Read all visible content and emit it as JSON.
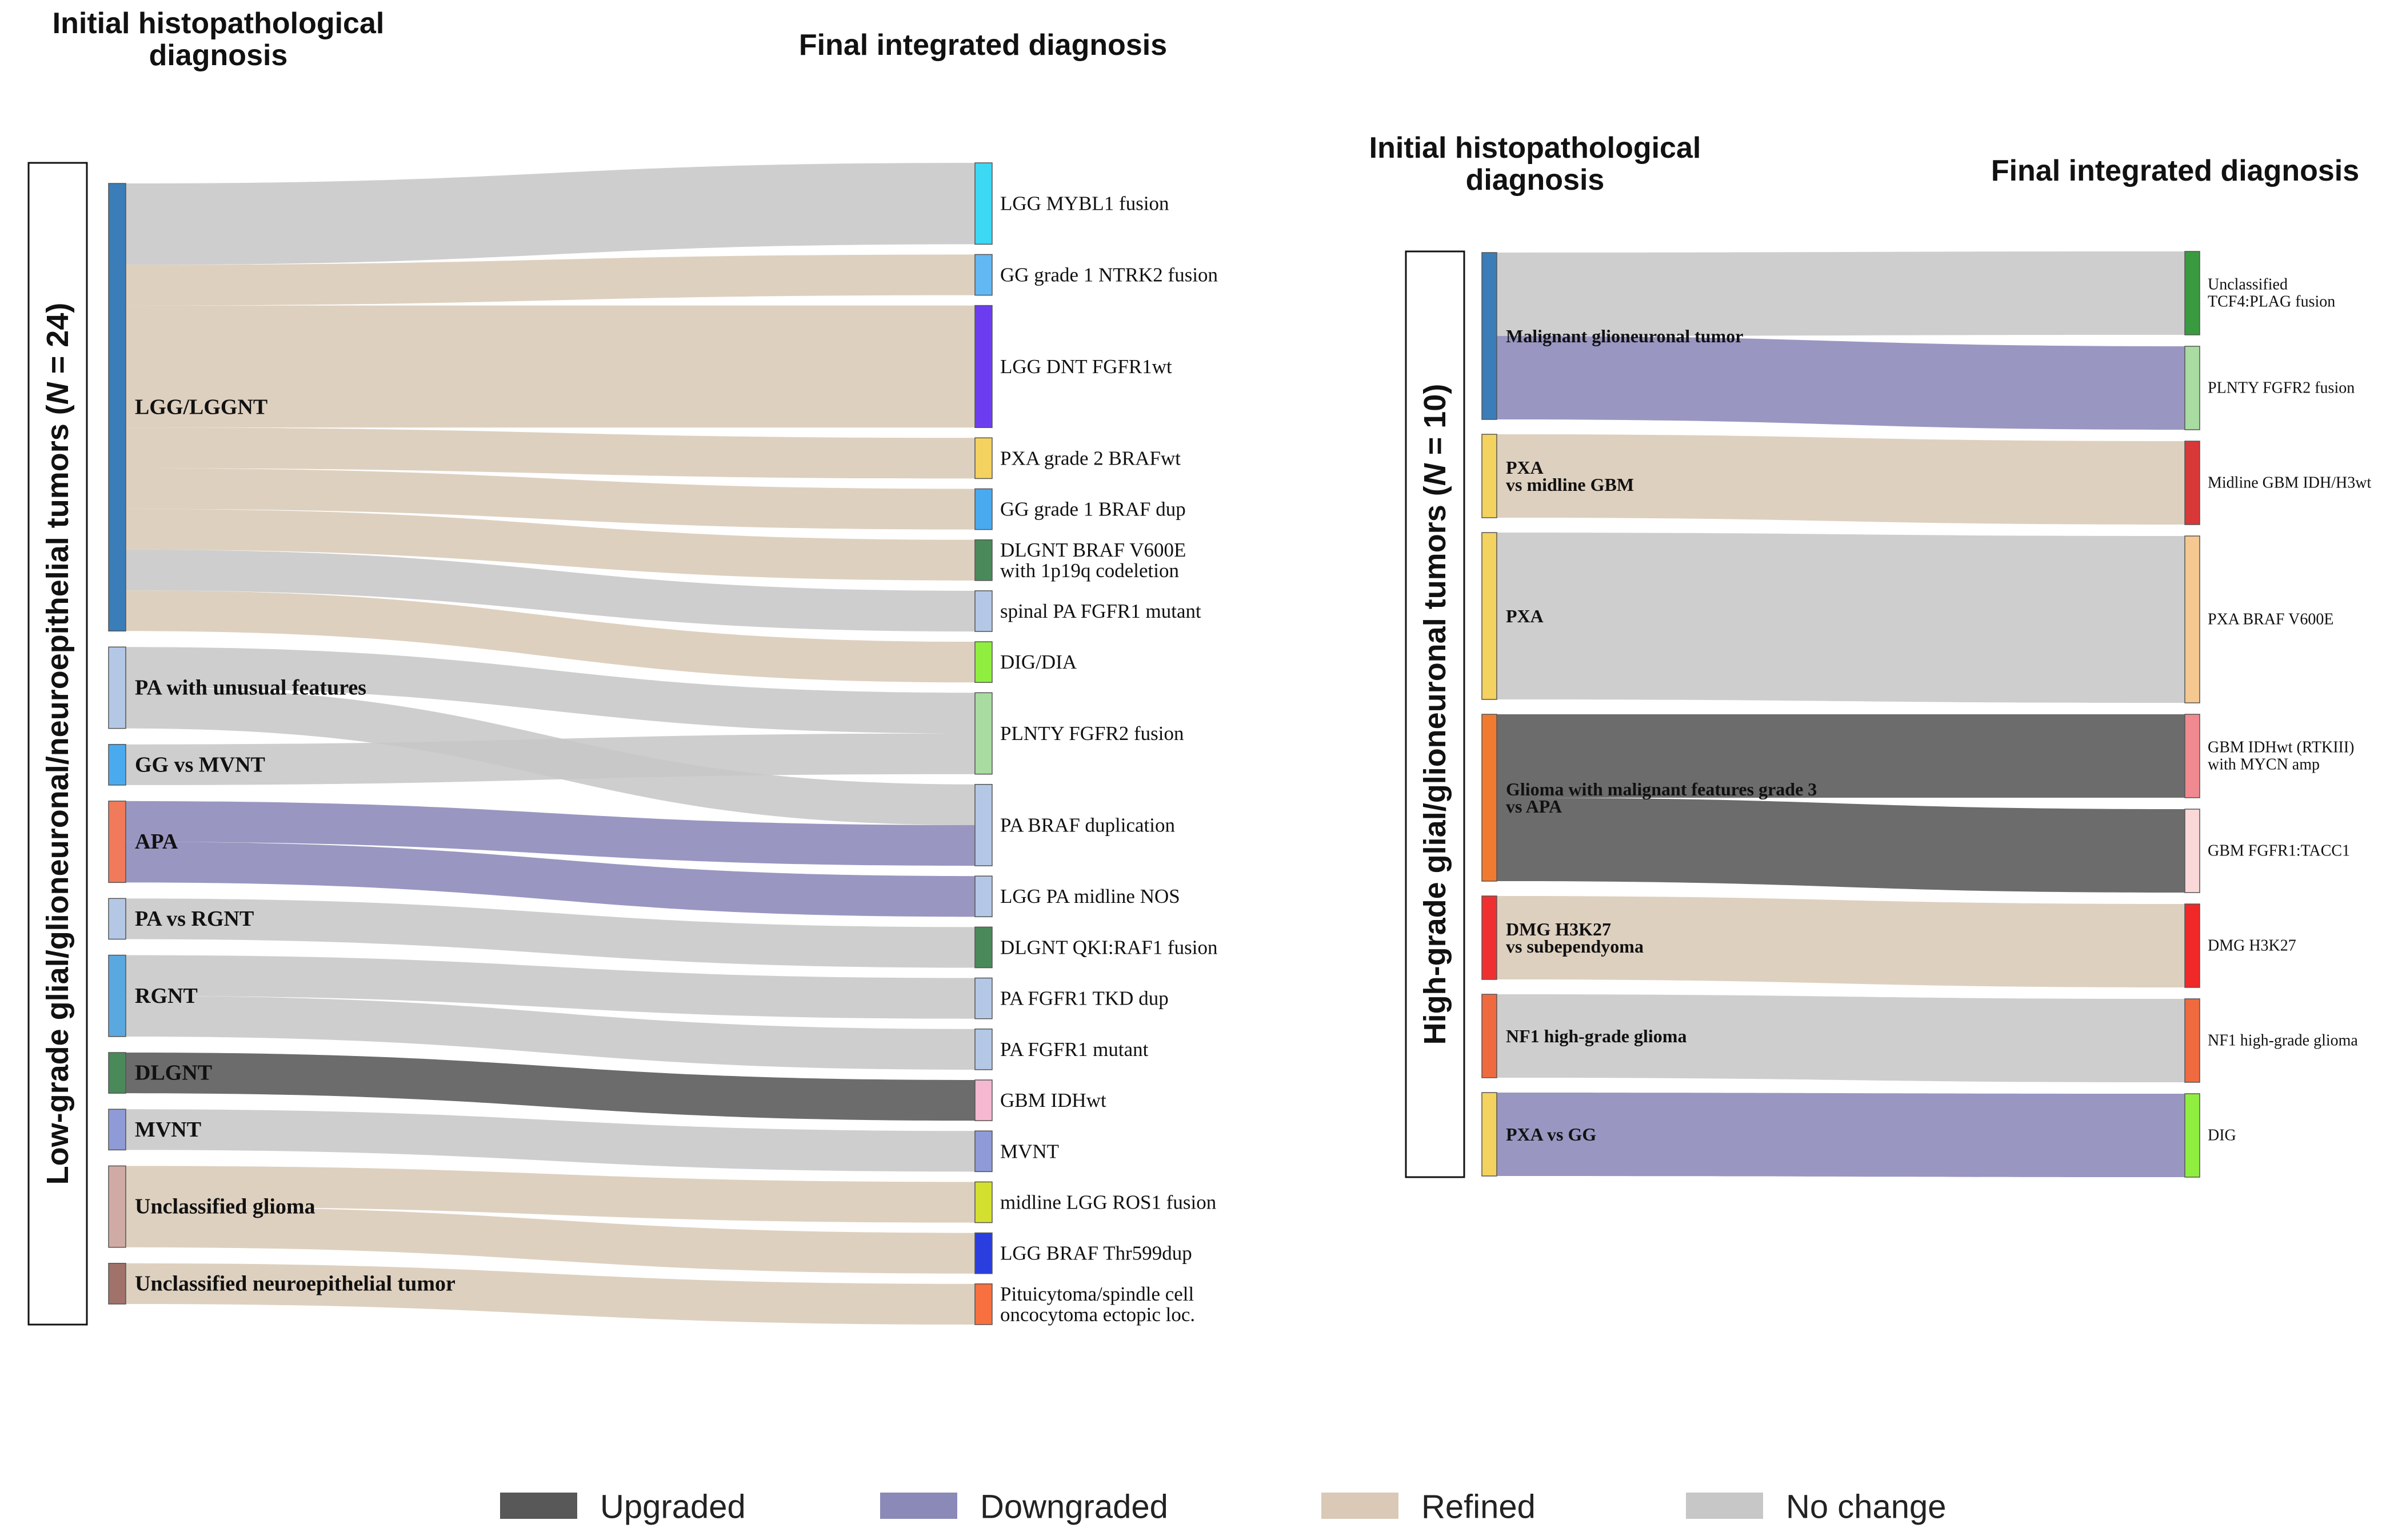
{
  "colors": {
    "Upgraded": "#585858",
    "Downgraded": "#8b89b8",
    "Refined": "#d9c9b6",
    "No change": "#c7c7c7"
  },
  "legend": [
    {
      "key": "Upgraded",
      "label": "Upgraded"
    },
    {
      "key": "Downgraded",
      "label": "Downgraded"
    },
    {
      "key": "Refined",
      "label": "Refined"
    },
    {
      "key": "No change",
      "label": "No change"
    }
  ],
  "panels": [
    {
      "id": "low",
      "header_left": [
        "Initial histopathological",
        "diagnosis"
      ],
      "header_right": "Final integrated diagnosis",
      "group_label": "Low-grade glial/glioneuronal/neuroepithelial tumors (",
      "group_n": "N",
      "group_count": " = 24)",
      "sources": [
        {
          "label": [
            "LGG/LGGNT"
          ],
          "color": "#3a7db8",
          "value": 11
        },
        {
          "label": [
            "PA with unusual features"
          ],
          "color": "#b4c8e6",
          "value": 2
        },
        {
          "label": [
            "GG vs MVNT"
          ],
          "color": "#4aaaf0",
          "value": 1
        },
        {
          "label": [
            "APA"
          ],
          "color": "#f07a5a",
          "value": 2
        },
        {
          "label": [
            "PA vs RGNT"
          ],
          "color": "#b4c8e6",
          "value": 1
        },
        {
          "label": [
            "RGNT"
          ],
          "color": "#5aa8e0",
          "value": 2
        },
        {
          "label": [
            "DLGNT"
          ],
          "color": "#4a8a5a",
          "value": 1
        },
        {
          "label": [
            "MVNT"
          ],
          "color": "#8f9bd6",
          "value": 1
        },
        {
          "label": [
            "Unclassified glioma"
          ],
          "color": "#d0aaa4",
          "value": 2
        },
        {
          "label": [
            "Unclassified neuroepithelial tumor"
          ],
          "color": "#a0726a",
          "value": 1
        }
      ],
      "targets": [
        {
          "label": [
            "LGG MYBL1 fusion"
          ],
          "color": "#3cd8f4",
          "value": 2
        },
        {
          "label": [
            "GG grade 1 NTRK2 fusion"
          ],
          "color": "#62b8f2",
          "value": 1
        },
        {
          "label": [
            "LGG DNT FGFR1wt"
          ],
          "color": "#6c3df0",
          "value": 3
        },
        {
          "label": [
            "PXA grade 2 BRAFwt"
          ],
          "color": "#f4d260",
          "value": 1
        },
        {
          "label": [
            "GG grade 1 BRAF dup"
          ],
          "color": "#4aaaf0",
          "value": 1
        },
        {
          "label": [
            "DLGNT BRAF V600E",
            "with 1p19q codeletion"
          ],
          "color": "#4a8a5a",
          "value": 1
        },
        {
          "label": [
            "spinal PA FGFR1 mutant"
          ],
          "color": "#b4c8e6",
          "value": 1
        },
        {
          "label": [
            "DIG/DIA"
          ],
          "color": "#90ee40",
          "value": 1
        },
        {
          "label": [
            "PLNTY FGFR2 fusion"
          ],
          "color": "#a8dca0",
          "value": 2
        },
        {
          "label": [
            "PA BRAF duplication"
          ],
          "color": "#b4c8e6",
          "value": 2
        },
        {
          "label": [
            "LGG PA midline NOS"
          ],
          "color": "#b4c8e6",
          "value": 1
        },
        {
          "label": [
            "DLGNT QKI:RAF1 fusion"
          ],
          "color": "#4a8a5a",
          "value": 1
        },
        {
          "label": [
            "PA FGFR1 TKD dup"
          ],
          "color": "#b4c8e6",
          "value": 1
        },
        {
          "label": [
            "PA FGFR1 mutant"
          ],
          "color": "#b4c8e6",
          "value": 1
        },
        {
          "label": [
            "GBM IDHwt"
          ],
          "color": "#f4b8d0",
          "value": 1
        },
        {
          "label": [
            "MVNT"
          ],
          "color": "#8f9bd6",
          "value": 1
        },
        {
          "label": [
            "midline LGG ROS1 fusion"
          ],
          "color": "#d4e030",
          "value": 1
        },
        {
          "label": [
            "LGG BRAF Thr599dup"
          ],
          "color": "#2a3ee0",
          "value": 1
        },
        {
          "label": [
            "Pituicytoma/spindle cell",
            "oncocytoma ectopic loc."
          ],
          "color": "#f87040",
          "value": 1
        }
      ],
      "links": [
        {
          "source": 0,
          "target": 0,
          "value": 2,
          "type": "No change"
        },
        {
          "source": 0,
          "target": 1,
          "value": 1,
          "type": "Refined"
        },
        {
          "source": 0,
          "target": 2,
          "value": 3,
          "type": "Refined"
        },
        {
          "source": 0,
          "target": 3,
          "value": 1,
          "type": "Refined"
        },
        {
          "source": 0,
          "target": 4,
          "value": 1,
          "type": "Refined"
        },
        {
          "source": 0,
          "target": 5,
          "value": 1,
          "type": "Refined"
        },
        {
          "source": 0,
          "target": 6,
          "value": 1,
          "type": "No change"
        },
        {
          "source": 0,
          "target": 7,
          "value": 1,
          "type": "Refined"
        },
        {
          "source": 1,
          "target": 8,
          "value": 1,
          "type": "No change"
        },
        {
          "source": 1,
          "target": 9,
          "value": 1,
          "type": "No change"
        },
        {
          "source": 2,
          "target": 8,
          "value": 1,
          "type": "No change"
        },
        {
          "source": 3,
          "target": 9,
          "value": 1,
          "type": "Downgraded"
        },
        {
          "source": 3,
          "target": 10,
          "value": 1,
          "type": "Downgraded"
        },
        {
          "source": 4,
          "target": 11,
          "value": 1,
          "type": "No change"
        },
        {
          "source": 5,
          "target": 12,
          "value": 1,
          "type": "No change"
        },
        {
          "source": 5,
          "target": 13,
          "value": 1,
          "type": "No change"
        },
        {
          "source": 6,
          "target": 14,
          "value": 1,
          "type": "Upgraded"
        },
        {
          "source": 7,
          "target": 15,
          "value": 1,
          "type": "No change"
        },
        {
          "source": 8,
          "target": 16,
          "value": 1,
          "type": "Refined"
        },
        {
          "source": 8,
          "target": 17,
          "value": 1,
          "type": "Refined"
        },
        {
          "source": 9,
          "target": 18,
          "value": 1,
          "type": "Refined"
        }
      ]
    },
    {
      "id": "high",
      "header_left": [
        "Initial histopathological",
        "diagnosis"
      ],
      "header_right": "Final integrated diagnosis",
      "group_label": "High-grade glial/glioneuronal tumors (",
      "group_n": "N",
      "group_count": " = 10)",
      "sources": [
        {
          "label": [
            "Malignant glioneuronal tumor"
          ],
          "color": "#3a7db8",
          "value": 2
        },
        {
          "label": [
            "PXA",
            "vs midline GBM"
          ],
          "color": "#f4d260",
          "value": 1
        },
        {
          "label": [
            "PXA"
          ],
          "color": "#f4d260",
          "value": 2
        },
        {
          "label": [
            "Glioma with malignant features grade 3",
            "vs APA"
          ],
          "color": "#f07a30",
          "value": 2
        },
        {
          "label": [
            "DMG H3K27",
            "vs subependyoma"
          ],
          "color": "#f03030",
          "value": 1
        },
        {
          "label": [
            "NF1 high-grade glioma"
          ],
          "color": "#f06a40",
          "value": 1
        },
        {
          "label": [
            "PXA vs GG"
          ],
          "color": "#f4d260",
          "value": 1
        }
      ],
      "targets": [
        {
          "label": [
            "Unclassified",
            "TCF4:PLAG fusion"
          ],
          "color": "#3a9a40",
          "value": 1
        },
        {
          "label": [
            "PLNTY FGFR2 fusion"
          ],
          "color": "#a8dca0",
          "value": 1
        },
        {
          "label": [
            "Midline GBM IDH/H3wt"
          ],
          "color": "#d83838",
          "value": 1
        },
        {
          "label": [
            "PXA BRAF V600E"
          ],
          "color": "#f4c890",
          "value": 2
        },
        {
          "label": [
            "GBM IDHwt (RTKIII)",
            "with MYCN amp"
          ],
          "color": "#f08a90",
          "value": 1
        },
        {
          "label": [
            "GBM FGFR1:TACC1"
          ],
          "color": "#fad8d8",
          "value": 1
        },
        {
          "label": [
            "DMG H3K27"
          ],
          "color": "#f02828",
          "value": 1
        },
        {
          "label": [
            "NF1 high-grade glioma"
          ],
          "color": "#f06a40",
          "value": 1
        },
        {
          "label": [
            "DIG"
          ],
          "color": "#90ee40",
          "value": 1
        }
      ],
      "links": [
        {
          "source": 0,
          "target": 0,
          "value": 1,
          "type": "No change"
        },
        {
          "source": 0,
          "target": 1,
          "value": 1,
          "type": "Downgraded"
        },
        {
          "source": 1,
          "target": 2,
          "value": 1,
          "type": "Refined"
        },
        {
          "source": 2,
          "target": 3,
          "value": 2,
          "type": "No change"
        },
        {
          "source": 3,
          "target": 4,
          "value": 1,
          "type": "Upgraded"
        },
        {
          "source": 3,
          "target": 5,
          "value": 1,
          "type": "Upgraded"
        },
        {
          "source": 4,
          "target": 6,
          "value": 1,
          "type": "Refined"
        },
        {
          "source": 5,
          "target": 7,
          "value": 1,
          "type": "No change"
        },
        {
          "source": 6,
          "target": 8,
          "value": 1,
          "type": "Downgraded"
        }
      ]
    }
  ]
}
